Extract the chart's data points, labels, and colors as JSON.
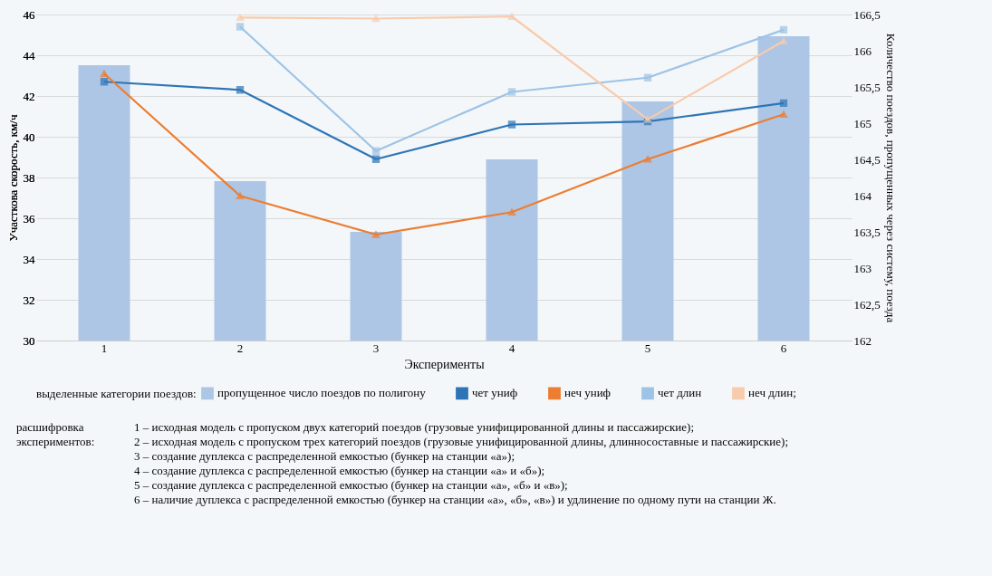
{
  "chart_data": {
    "type": "line",
    "categories": [
      "1",
      "2",
      "3",
      "4",
      "5",
      "6"
    ],
    "xlabel": "Эксперименты",
    "ylabel": "Участкова скорость, км/ч",
    "y2label": "Количество поездов, пропущенных через систему, поезда",
    "legend_title": "выделенные категории поездов:",
    "legend": "bottom",
    "grid": "y",
    "ylim": [
      30,
      46
    ],
    "yticks": [
      30,
      32,
      34,
      36,
      38,
      40,
      42,
      44,
      46
    ],
    "y2lim": [
      162,
      166.5
    ],
    "y2ticks": [
      162,
      {
        "value": 162.5,
        "label": "162,5"
      },
      163,
      {
        "value": 163.5,
        "label": "163,5"
      },
      164,
      {
        "value": 164.5,
        "label": "164,5"
      },
      165,
      {
        "value": 165.5,
        "label": "165,5"
      },
      166,
      {
        "value": 166.5,
        "label": "166,5"
      }
    ],
    "series": [
      {
        "name": "пропущенное число поездов по полигону",
        "type": "bar",
        "axis": "y2",
        "color": "#adc6e5",
        "values": [
          165.8,
          164.2,
          163.5,
          164.5,
          165.3,
          166.2
        ]
      },
      {
        "name": "чет униф",
        "marker": "square",
        "color": "#2e75b6",
        "values": [
          42.7,
          42.3,
          38.9,
          40.6,
          40.75,
          41.65
        ]
      },
      {
        "name": "неч униф",
        "marker": "triangle",
        "color": "#ed7d31",
        "values": [
          43.1,
          37.1,
          35.2,
          36.3,
          38.9,
          41.1
        ]
      },
      {
        "name": "чет длин",
        "marker": "square",
        "color": "#9dc3e6",
        "values": [
          null,
          45.4,
          39.3,
          42.2,
          42.9,
          45.25
        ]
      },
      {
        "name": "неч длин;",
        "marker": "triangle",
        "color": "#f8cbad",
        "values": [
          null,
          45.85,
          45.8,
          45.9,
          40.85,
          44.7
        ]
      }
    ],
    "annotations": [
      "расшифровка экспериментов:",
      "1 – исходная модель с пропуском двух категорий поездов (грузовые унифицированной длины и пассажирские);",
      "2 – исходная модель с пропуском трех категорий поездов (грузовые унифицированной длины, длинносоставные и пассажирские);",
      "3 – создание дуплекса с распределенной емкостью (бункер на станции «а»);",
      "4 – создание дуплекса с распределенной емкостью (бункер на станции «а» и «б»);",
      "5 – создание дуплекса с распределенной емкостью (бункер на станции «а», «б» и «в»);",
      "6 – наличие дуплекса с распределенной емкостью (бункер на станции «а», «б», «в») и удлинение по одному пути на станции Ж."
    ]
  }
}
